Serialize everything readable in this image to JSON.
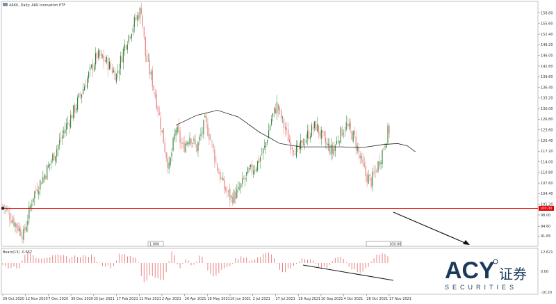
{
  "chart_data": [
    {
      "type": "candlestick",
      "title": "ARKK, Daily: ARK Innovation ETF",
      "y_axis_side": "right",
      "ylim": [
        89,
        161
      ],
      "y_ticks": [
        91.65,
        94.6,
        98.0,
        101.2,
        104.4,
        107.6,
        110.8,
        114.0,
        117.2,
        120.4,
        123.6,
        126.8,
        130.0,
        133.2,
        136.4,
        139.6,
        142.8,
        146.0,
        149.2,
        152.4,
        155.6,
        158.8
      ],
      "y_tick_labels": [
        "91.65",
        "94.60",
        "98.00",
        "101.20",
        "104.40",
        "107.60",
        "110.80",
        "114.00",
        "117.20",
        "120.40",
        "123.60",
        "126.80",
        "130.00",
        "133.20",
        "136.40",
        "139.60",
        "142.80",
        "146.00",
        "149.20",
        "152.40",
        "155.60",
        "158.80"
      ],
      "x_tick_labels": [
        "29 Oct 2020",
        "12 Nov 2020",
        "7 Dec 2020",
        "30 Dec 2020",
        "25 Jan 2021",
        "17 Feb 2021",
        "11 Mar 2021",
        "2 Apr 2021",
        "26 Apr 2021",
        "18 May 2021",
        "10 Jun 2021",
        "2 Jul 2021",
        "27 Jul 2021",
        "18 Aug 2021",
        "10 Sep 2021",
        "4 Oct 2021",
        "26 Oct 2021",
        "17 Nov 2021"
      ],
      "candle_count": 280,
      "close_path": [
        [
          0,
          101
        ],
        [
          8,
          96
        ],
        [
          15,
          92
        ],
        [
          22,
          104
        ],
        [
          30,
          110
        ],
        [
          38,
          117
        ],
        [
          45,
          124
        ],
        [
          52,
          130
        ],
        [
          60,
          138
        ],
        [
          68,
          146
        ],
        [
          75,
          144
        ],
        [
          82,
          140
        ],
        [
          88,
          149
        ],
        [
          95,
          156
        ],
        [
          100,
          160
        ],
        [
          103,
          146
        ],
        [
          108,
          138
        ],
        [
          112,
          130
        ],
        [
          117,
          118
        ],
        [
          120,
          112
        ],
        [
          125,
          124
        ],
        [
          130,
          118
        ],
        [
          135,
          122
        ],
        [
          140,
          118
        ],
        [
          146,
          126
        ],
        [
          150,
          121
        ],
        [
          155,
          112
        ],
        [
          160,
          106
        ],
        [
          165,
          103
        ],
        [
          170,
          105
        ],
        [
          176,
          110
        ],
        [
          183,
          113
        ],
        [
          189,
          118
        ],
        [
          194,
          127
        ],
        [
          198,
          131
        ],
        [
          202,
          126
        ],
        [
          207,
          120
        ],
        [
          213,
          117
        ],
        [
          220,
          122
        ],
        [
          226,
          125
        ],
        [
          232,
          120
        ],
        [
          238,
          117
        ],
        [
          243,
          122
        ],
        [
          248,
          125
        ],
        [
          254,
          121
        ],
        [
          258,
          115
        ],
        [
          262,
          110
        ],
        [
          266,
          108
        ],
        [
          270,
          112
        ],
        [
          274,
          117
        ],
        [
          278,
          123
        ],
        [
          282,
          125
        ],
        [
          285,
          124
        ],
        [
          288,
          121
        ],
        [
          291,
          117
        ],
        [
          294,
          110
        ],
        [
          297,
          104
        ],
        [
          300,
          100
        ],
        [
          302,
          97
        ],
        [
          304,
          93
        ],
        [
          306,
          92
        ],
        [
          308,
          95
        ]
      ],
      "moving_average": {
        "label": "",
        "points": [
          [
            125,
            125
          ],
          [
            140,
            128
          ],
          [
            155,
            129.5
          ],
          [
            170,
            127.5
          ],
          [
            185,
            123
          ],
          [
            200,
            119.5
          ],
          [
            215,
            118.5
          ],
          [
            230,
            118.5
          ],
          [
            245,
            118.5
          ],
          [
            260,
            118.3
          ],
          [
            275,
            119.2
          ],
          [
            285,
            119.5
          ],
          [
            292,
            118.8
          ],
          [
            298,
            117
          ]
        ]
      },
      "horizontal_line": {
        "value": 100.0,
        "color": "#e00000",
        "label": "100.00"
      },
      "current_price_label": "100.00",
      "trend_arrow": "downward trend arrow pointing to the lower right",
      "colors": {
        "up": "#2e7d32",
        "down": "#e57373",
        "line": "#e00000",
        "ma": "#222222"
      }
    },
    {
      "type": "histogram",
      "title": "Bears(13) -0.657",
      "y_tick_labels": [
        "12.621",
        "0.00",
        "-10.20"
      ],
      "divergence_line": "descending line beneath the recent histogram bars",
      "colors": {
        "bars": "#e57373"
      }
    }
  ],
  "watermark": {
    "brand": "ACY",
    "chinese": "证券",
    "subtitle": "SECURITIES"
  },
  "misc": {
    "bottom_markers": [
      "1.000",
      "100.00"
    ]
  }
}
